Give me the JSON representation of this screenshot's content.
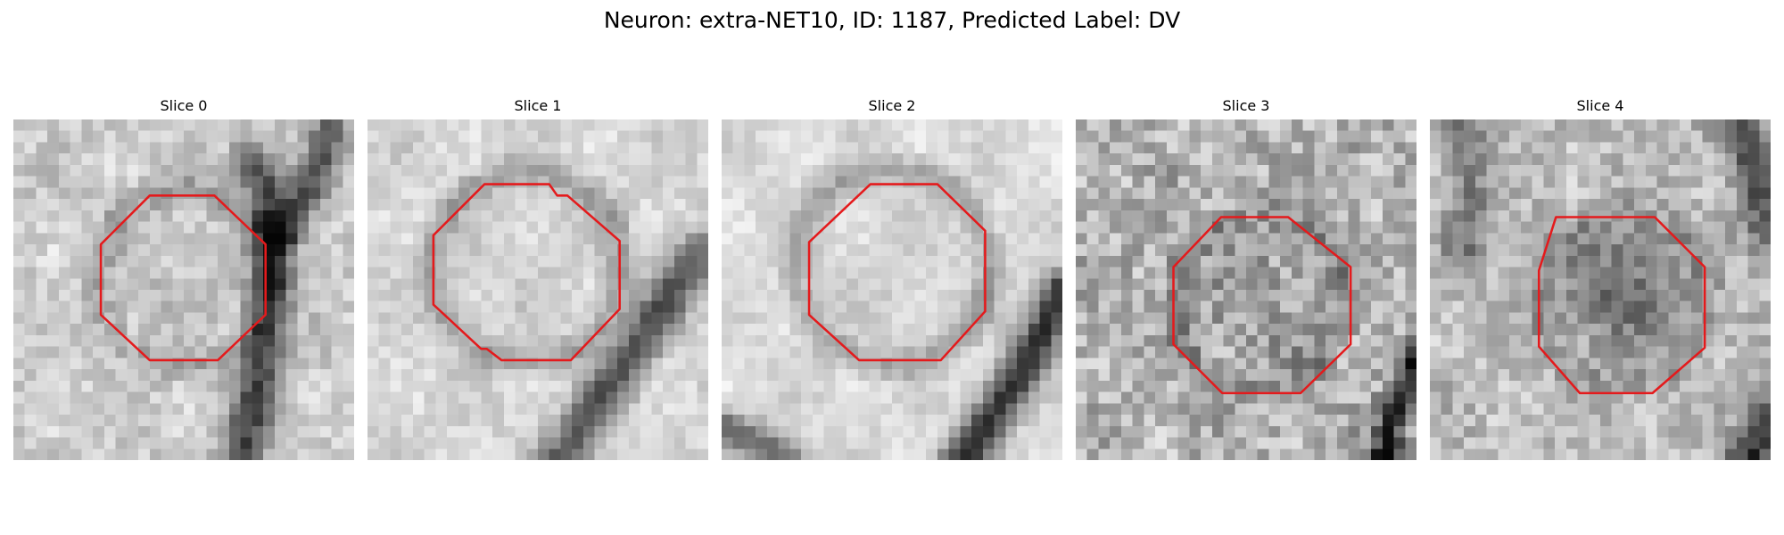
{
  "title": "Neuron: extra-NET10, ID: 1187, Predicted Label: DV",
  "outline_color": "#e41a1c",
  "panels": [
    {
      "label": "Slice 0"
    },
    {
      "label": "Slice 1"
    },
    {
      "label": "Slice 2"
    },
    {
      "label": "Slice 3"
    },
    {
      "label": "Slice 4"
    }
  ]
}
